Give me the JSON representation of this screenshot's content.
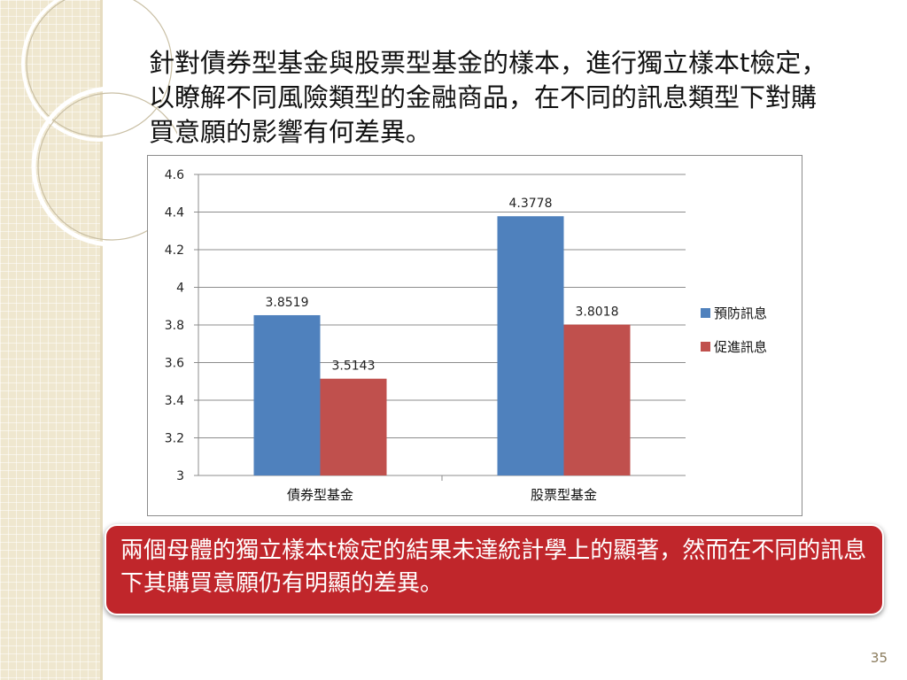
{
  "slide": {
    "heading": "針對債券型基金與股票型基金的樣本，進行獨立樣本t檢定，以瞭解不同風險類型的金融商品，在不同的訊息類型下對購買意願的影響有何差異。",
    "result": "兩個母體的獨立樣本t檢定的結果未達統計學上的顯著，然而在不同的訊息下其購買意願仍有明顯的差異。",
    "page_number": "35"
  },
  "theme": {
    "series_colors": [
      "#4f81bd",
      "#c0504d"
    ],
    "result_box_color": "#c0262b"
  },
  "chart_data": {
    "type": "bar",
    "categories": [
      "債券型基金",
      "股票型基金"
    ],
    "series": [
      {
        "name": "預防訊息",
        "values": [
          3.8519,
          4.3778
        ]
      },
      {
        "name": "促進訊息",
        "values": [
          3.5143,
          3.8018
        ]
      }
    ],
    "data_labels": [
      [
        "3.8519",
        "4.3778"
      ],
      [
        "3.5143",
        "3.8018"
      ]
    ],
    "ylim": [
      3,
      4.6
    ],
    "yticks": [
      "3",
      "3.2",
      "3.4",
      "3.6",
      "3.8",
      "4",
      "4.2",
      "4.4",
      "4.6"
    ],
    "grid": true,
    "legend_position": "right",
    "title": "",
    "xlabel": "",
    "ylabel": ""
  }
}
